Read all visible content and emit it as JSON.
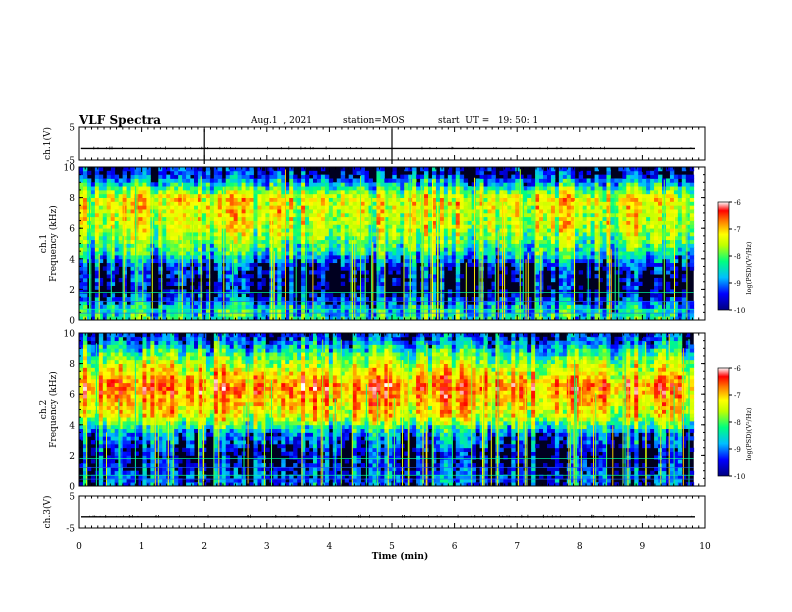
{
  "header": {
    "title": "VLF Spectra",
    "date": "Aug.1  , 2021",
    "station": "station=MOS",
    "start": "start  UT =   19: 50: 1"
  },
  "chart_data": [
    {
      "type": "line",
      "panel": "ch1-waveform",
      "ylabel": "ch.1(V)",
      "ylim": [
        -5,
        5
      ],
      "yticks": [
        "5",
        "-5"
      ],
      "level": -1.5,
      "x_range": [
        0,
        10
      ]
    },
    {
      "type": "heatmap",
      "panel": "ch1-spectrogram",
      "ylabel": "ch.1\nFrequency (kHz)",
      "ylim": [
        0,
        10
      ],
      "yticks": [
        "0",
        "2",
        "4",
        "6",
        "8",
        "10"
      ],
      "x_range": [
        0,
        9.82
      ],
      "colorbar": {
        "label": "log(PSD)(V²/Hz)",
        "ticks": [
          "-6",
          "-7",
          "-8",
          "-9",
          "-10"
        ],
        "range": [
          -10,
          -6
        ]
      },
      "intensity_profile_kHz": [
        {
          "f": 0.5,
          "level": -8.6
        },
        {
          "f": 2,
          "level": -9.9
        },
        {
          "f": 3.5,
          "level": -9.5
        },
        {
          "f": 4.5,
          "level": -8.5
        },
        {
          "f": 6,
          "level": -7.8
        },
        {
          "f": 8,
          "level": -7.5
        },
        {
          "f": 9.5,
          "level": -9.6
        }
      ]
    },
    {
      "type": "heatmap",
      "panel": "ch2-spectrogram",
      "ylabel": "ch.2\nFrequency (kHz)",
      "ylim": [
        0,
        10
      ],
      "yticks": [
        "0",
        "2",
        "4",
        "6",
        "8",
        "10"
      ],
      "x_range": [
        0,
        9.82
      ],
      "colorbar": {
        "label": "log(PSD)(V²/Hz)",
        "ticks": [
          "-6",
          "-7",
          "-8",
          "-9",
          "-10"
        ],
        "range": [
          -10,
          -6
        ]
      },
      "intensity_profile_kHz": [
        {
          "f": 0.5,
          "level": -9.3
        },
        {
          "f": 2,
          "level": -9.7
        },
        {
          "f": 3.5,
          "level": -9.0
        },
        {
          "f": 4.5,
          "level": -7.6
        },
        {
          "f": 6.5,
          "level": -6.8
        },
        {
          "f": 8.5,
          "level": -8.2
        },
        {
          "f": 9.8,
          "level": -9.4
        }
      ]
    },
    {
      "type": "line",
      "panel": "ch3-waveform",
      "ylabel": "ch.3(V)",
      "ylim": [
        -5,
        5
      ],
      "yticks": [
        "5",
        "-5"
      ],
      "level": -1.5,
      "x_range": [
        0,
        10
      ]
    }
  ],
  "x_axis": {
    "label": "Time (min)",
    "ticks": [
      "0",
      "1",
      "2",
      "3",
      "4",
      "5",
      "6",
      "7",
      "8",
      "9",
      "10"
    ],
    "range": [
      0,
      10
    ]
  },
  "colors": {
    "colormap": [
      "#00007f",
      "#0000ff",
      "#00bfff",
      "#00ff7f",
      "#bfff00",
      "#ffff00",
      "#ff8000",
      "#ff0000",
      "#ffffff"
    ],
    "background": "#000020"
  }
}
